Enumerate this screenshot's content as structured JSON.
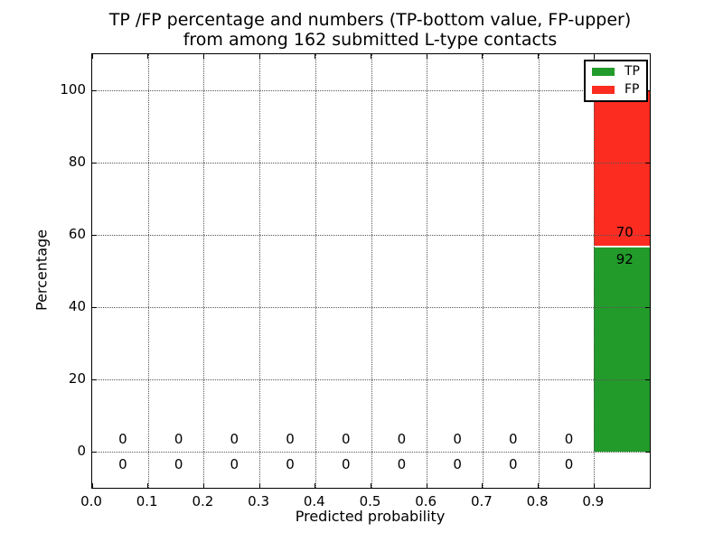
{
  "title": {
    "line1": "TP /FP percentage and numbers (TP-bottom value, FP-upper)",
    "line2": "from among 162 submitted L-type contacts"
  },
  "axes": {
    "xlabel": "Predicted probability",
    "ylabel": "Percentage"
  },
  "legend": {
    "position": "upper right",
    "items": [
      {
        "label": "TP",
        "color": "#229b2b"
      },
      {
        "label": "FP",
        "color": "#fc2c21"
      }
    ]
  },
  "colors": {
    "tp": "#229b2b",
    "fp": "#fc2c21",
    "grid": "#555555",
    "frame": "#000000",
    "segment_divider": "#f4f4f4"
  },
  "chart_data": {
    "type": "bar",
    "stacked": true,
    "title": "TP /FP percentage and numbers (TP-bottom value, FP-upper) from among 162 submitted L-type contacts",
    "xlabel": "Predicted probability",
    "ylabel": "Percentage",
    "xlim": [
      0.0,
      1.0
    ],
    "ylim": [
      -10,
      110
    ],
    "grid": true,
    "legend_position": "upper right",
    "total_contacts": 162,
    "bin_width": 0.1,
    "x_ticks": {
      "values": [
        0.0,
        0.1,
        0.2,
        0.3,
        0.4,
        0.5,
        0.6,
        0.7,
        0.8,
        0.9
      ],
      "labels": [
        "0.0",
        "0.1",
        "0.2",
        "0.3",
        "0.4",
        "0.5",
        "0.6",
        "0.7",
        "0.8",
        "0.9"
      ]
    },
    "y_ticks": {
      "values": [
        0,
        20,
        40,
        60,
        80,
        100
      ],
      "labels": [
        "0",
        "20",
        "40",
        "60",
        "80",
        "100"
      ]
    },
    "series": [
      {
        "name": "TP",
        "color": "#229b2b",
        "counts": [
          0,
          0,
          0,
          0,
          0,
          0,
          0,
          0,
          0,
          92
        ]
      },
      {
        "name": "FP",
        "color": "#fc2c21",
        "counts": [
          0,
          0,
          0,
          0,
          0,
          0,
          0,
          0,
          0,
          70
        ]
      }
    ],
    "bins": [
      {
        "x_start": 0.0,
        "tp": 0,
        "fp": 0
      },
      {
        "x_start": 0.1,
        "tp": 0,
        "fp": 0
      },
      {
        "x_start": 0.2,
        "tp": 0,
        "fp": 0
      },
      {
        "x_start": 0.3,
        "tp": 0,
        "fp": 0
      },
      {
        "x_start": 0.4,
        "tp": 0,
        "fp": 0
      },
      {
        "x_start": 0.5,
        "tp": 0,
        "fp": 0
      },
      {
        "x_start": 0.6,
        "tp": 0,
        "fp": 0
      },
      {
        "x_start": 0.7,
        "tp": 0,
        "fp": 0
      },
      {
        "x_start": 0.8,
        "tp": 0,
        "fp": 0
      },
      {
        "x_start": 0.9,
        "tp": 92,
        "fp": 70
      }
    ],
    "last_bin_percentages": {
      "tp_pct": 56.8,
      "fp_pct": 43.2
    }
  }
}
